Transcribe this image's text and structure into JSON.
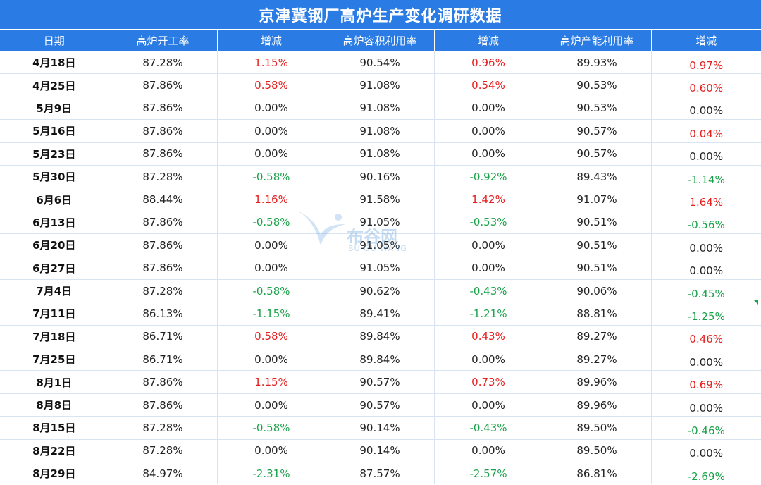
{
  "title": "京津冀钢厂高炉生产变化调研数据",
  "headers": [
    "日期",
    "高炉开工率",
    "增减",
    "高炉容积利用率",
    "增减",
    "高炉产能利用率",
    "增减"
  ],
  "rows": [
    [
      "4月18日",
      "87.28%",
      "1.15%",
      "90.54%",
      "0.96%",
      "89.93%",
      "0.97%"
    ],
    [
      "4月25日",
      "87.86%",
      "0.58%",
      "91.08%",
      "0.54%",
      "90.53%",
      "0.60%"
    ],
    [
      "5月9日",
      "87.86%",
      "0.00%",
      "91.08%",
      "0.00%",
      "90.53%",
      "0.00%"
    ],
    [
      "5月16日",
      "87.86%",
      "0.00%",
      "91.08%",
      "0.00%",
      "90.57%",
      "0.04%"
    ],
    [
      "5月23日",
      "87.86%",
      "0.00%",
      "91.08%",
      "0.00%",
      "90.57%",
      "0.00%"
    ],
    [
      "5月30日",
      "87.28%",
      "-0.58%",
      "90.16%",
      "-0.92%",
      "89.43%",
      "-1.14%"
    ],
    [
      "6月6日",
      "88.44%",
      "1.16%",
      "91.58%",
      "1.42%",
      "91.07%",
      "1.64%"
    ],
    [
      "6月13日",
      "87.86%",
      "-0.58%",
      "91.05%",
      "-0.53%",
      "90.51%",
      "-0.56%"
    ],
    [
      "6月20日",
      "87.86%",
      "0.00%",
      "91.05%",
      "0.00%",
      "90.51%",
      "0.00%"
    ],
    [
      "6月27日",
      "87.86%",
      "0.00%",
      "91.05%",
      "0.00%",
      "90.51%",
      "0.00%"
    ],
    [
      "7月4日",
      "87.28%",
      "-0.58%",
      "90.62%",
      "-0.43%",
      "90.06%",
      "-0.45%"
    ],
    [
      "7月11日",
      "86.13%",
      "-1.15%",
      "89.41%",
      "-1.21%",
      "88.81%",
      "-1.25%"
    ],
    [
      "7月18日",
      "86.71%",
      "0.58%",
      "89.84%",
      "0.43%",
      "89.27%",
      "0.46%"
    ],
    [
      "7月25日",
      "86.71%",
      "0.00%",
      "89.84%",
      "0.00%",
      "89.27%",
      "0.00%"
    ],
    [
      "8月1日",
      "87.86%",
      "1.15%",
      "90.57%",
      "0.73%",
      "89.96%",
      "0.69%"
    ],
    [
      "8月8日",
      "87.86%",
      "0.00%",
      "90.57%",
      "0.00%",
      "89.96%",
      "0.00%"
    ],
    [
      "8月15日",
      "87.28%",
      "-0.58%",
      "90.14%",
      "-0.43%",
      "89.50%",
      "-0.46%"
    ],
    [
      "8月22日",
      "87.28%",
      "0.00%",
      "90.14%",
      "0.00%",
      "89.50%",
      "0.00%"
    ],
    [
      "8月29日",
      "84.97%",
      "-2.31%",
      "87.57%",
      "-2.57%",
      "86.81%",
      "-2.69%"
    ]
  ],
  "watermark": {
    "text": "布谷网",
    "sub": "BU GU WANG",
    "icon": "bird-logo-icon"
  },
  "colors": {
    "header_bg": "#2a7be4",
    "positive": "#e51e1e",
    "negative": "#1aa24a",
    "grid": "#d8e4f2"
  }
}
